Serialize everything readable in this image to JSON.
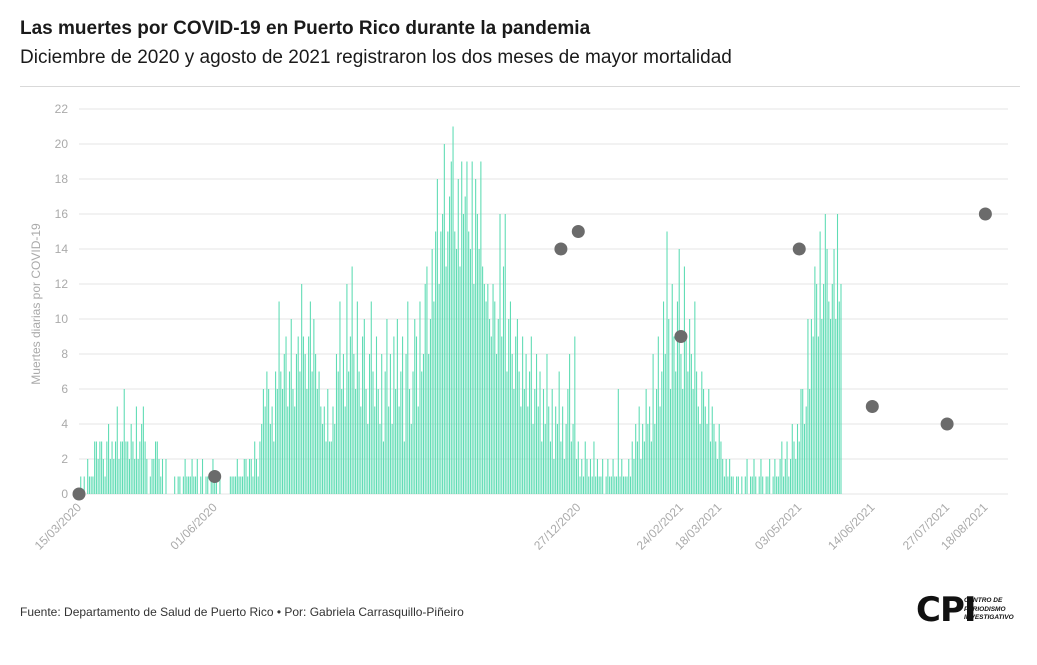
{
  "header": {
    "title": "Las muertes por COVID-19 en Puerto Rico durante la pandemia",
    "subtitle": "Diciembre de 2020 y agosto de 2021 registraron los dos meses de mayor mortalidad"
  },
  "footer": {
    "source": "Fuente: Departamento de Salud de Puerto Rico • Por: Gabriela Carrasquillo-Piñeiro",
    "logo_mark": "CPI",
    "logo_text": [
      "CENTRO DE",
      "PERIODISMO",
      "INVESTIGATIVO"
    ]
  },
  "colors": {
    "bar": "#5fdcb4",
    "dot": "#6b6b6b",
    "grid": "#e6e6e6",
    "axis_text": "#aaaaaa"
  },
  "chart_data": {
    "type": "bar",
    "ylabel": "Muertes diarias por COVID-19",
    "ylim": [
      0,
      22
    ],
    "yticks": [
      0,
      2,
      4,
      6,
      8,
      10,
      12,
      14,
      16,
      18,
      20,
      22
    ],
    "grid": true,
    "x_range": [
      "2020-03-15",
      "2021-08-31"
    ],
    "xtick_labels": [
      {
        "date": "2020-03-15",
        "label": "15/03/2020"
      },
      {
        "date": "2020-06-01",
        "label": "01/06/2020"
      },
      {
        "date": "2020-12-27",
        "label": "27/12/2020"
      },
      {
        "date": "2021-02-24",
        "label": "24/02/2021"
      },
      {
        "date": "2021-03-18",
        "label": "18/03/2021"
      },
      {
        "date": "2021-05-03",
        "label": "03/05/2021"
      },
      {
        "date": "2021-06-14",
        "label": "14/06/2021"
      },
      {
        "date": "2021-07-27",
        "label": "27/07/2021"
      },
      {
        "date": "2021-08-18",
        "label": "18/08/2021"
      }
    ],
    "series": [
      {
        "start_date": "2020-03-15",
        "values": [
          0,
          1,
          0,
          1,
          0,
          2,
          1,
          1,
          1,
          3,
          3,
          2,
          3,
          3,
          2,
          1,
          3,
          4,
          2,
          3,
          2,
          3,
          5,
          2,
          3,
          3,
          6,
          3,
          3,
          2,
          4,
          3,
          2,
          5,
          2,
          3,
          4,
          5,
          3,
          2,
          0,
          1,
          2,
          2,
          3,
          3,
          2,
          1,
          2,
          0,
          2,
          0,
          0,
          0,
          0,
          1,
          0,
          1,
          1,
          0,
          1,
          2,
          1,
          1,
          1,
          2,
          1,
          1,
          2,
          0,
          1,
          2,
          0,
          1,
          1,
          0,
          1,
          2,
          1,
          1,
          0,
          1,
          0,
          0,
          0,
          0,
          0,
          1,
          1,
          1,
          1,
          2,
          1,
          1,
          1,
          2,
          2,
          1,
          2,
          2,
          1,
          3,
          2,
          1,
          3,
          4,
          6,
          5,
          7,
          6,
          4,
          5,
          3,
          7,
          6,
          11,
          7,
          6,
          8,
          9,
          5,
          7,
          10,
          6,
          5,
          8,
          9,
          7,
          12,
          9,
          8,
          6,
          9,
          11,
          7,
          10,
          8,
          6,
          7,
          5,
          4,
          5,
          3,
          6,
          3,
          3,
          5,
          4,
          8,
          7,
          11,
          6,
          8,
          5,
          12,
          7,
          9,
          13,
          8,
          6,
          11,
          7,
          5,
          9,
          10,
          6,
          4,
          8,
          11,
          7,
          5,
          9,
          6,
          4,
          8,
          3,
          7,
          10,
          5,
          8,
          4,
          9,
          6,
          10,
          5,
          7,
          9,
          3,
          8,
          11,
          6,
          4,
          7,
          10,
          9,
          5,
          11,
          7,
          8,
          12,
          13,
          8,
          10,
          14,
          11,
          15,
          18,
          12,
          15,
          16,
          20,
          13,
          15,
          17,
          19,
          21,
          15,
          14,
          18,
          13,
          19,
          16,
          17,
          19,
          15,
          14,
          19,
          12,
          18,
          16,
          14,
          19,
          13,
          12,
          11,
          12,
          10,
          9,
          12,
          11,
          8,
          10,
          16,
          9,
          13,
          16,
          7,
          10,
          11,
          8,
          6,
          9,
          10,
          7,
          5,
          9,
          6,
          8,
          5,
          7,
          9,
          4,
          6,
          8,
          5,
          7,
          3,
          6,
          4,
          8,
          5,
          3,
          6,
          2,
          5,
          4,
          7,
          3,
          5,
          2,
          4,
          6,
          8,
          3,
          4,
          9,
          2,
          3,
          1,
          2,
          1,
          3,
          2,
          1,
          2,
          1,
          3,
          1,
          2,
          1,
          1,
          2,
          0,
          1,
          2,
          1,
          1,
          2,
          1,
          1,
          6,
          1,
          2,
          1,
          1,
          1,
          2,
          1,
          3,
          2,
          4,
          3,
          5,
          2,
          4,
          3,
          6,
          4,
          5,
          3,
          8,
          4,
          6,
          9,
          5,
          7,
          11,
          8,
          15,
          10,
          6,
          12,
          9,
          7,
          11,
          14,
          8,
          6,
          13,
          9,
          7,
          10,
          8,
          6,
          11,
          7,
          5,
          4,
          7,
          6,
          5,
          4,
          6,
          3,
          5,
          4,
          3,
          2,
          4,
          3,
          2,
          1,
          2,
          1,
          2,
          1,
          1,
          0,
          1,
          1,
          0,
          1,
          0,
          1,
          2,
          0,
          1,
          1,
          2,
          1,
          0,
          1,
          2,
          1,
          0,
          1,
          1,
          2,
          0,
          1,
          2,
          1,
          1,
          2,
          3,
          1,
          2,
          3,
          1,
          2,
          4,
          3,
          2,
          4,
          3,
          6,
          6,
          4,
          5,
          10,
          6,
          10,
          9,
          13,
          12,
          9,
          15,
          10,
          12,
          16,
          14,
          11,
          10,
          12,
          14,
          10,
          16,
          11,
          12
        ]
      }
    ],
    "highlight_points": [
      {
        "date": "2020-03-15",
        "value": 0
      },
      {
        "date": "2020-06-01",
        "value": 1
      },
      {
        "date": "2020-12-17",
        "value": 14
      },
      {
        "date": "2020-12-27",
        "value": 15
      },
      {
        "date": "2021-02-24",
        "value": 9
      },
      {
        "date": "2021-05-03",
        "value": 14
      },
      {
        "date": "2021-06-14",
        "value": 5
      },
      {
        "date": "2021-07-27",
        "value": 4
      },
      {
        "date": "2021-08-18",
        "value": 16
      }
    ]
  }
}
